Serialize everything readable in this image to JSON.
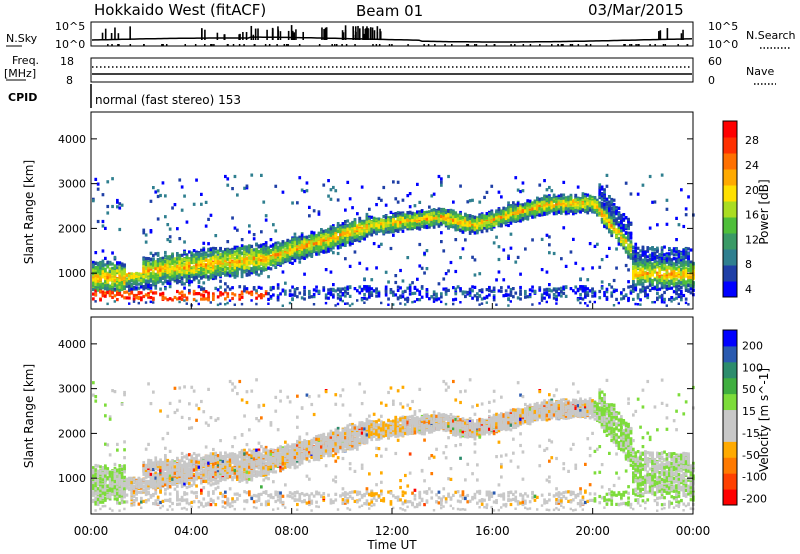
{
  "header": {
    "station": "Hokkaido West (fitACF)",
    "beam": "Beam 01",
    "date": "03/Mar/2015"
  },
  "status_panels": {
    "nsky_label": "N.Sky",
    "nsearch_label": "N.Search",
    "noise_ticks": [
      "10^5",
      "10^0"
    ],
    "freq_label": "Freq.",
    "freq_unit": "[MHz]",
    "freq_ticks": [
      "18",
      "8"
    ],
    "nave_label": "Nave",
    "nave_ticks": [
      "60",
      "0"
    ],
    "cpid_label": "CPID",
    "cpid_text": "normal (fast stereo) 153"
  },
  "colors": {
    "power": [
      "#0000ff",
      "#1f3fa6",
      "#2f7f8f",
      "#3a9a66",
      "#4fbf3a",
      "#aadd22",
      "#ffe000",
      "#ffaa00",
      "#ff7000",
      "#ff3000",
      "#ff0000"
    ],
    "velocity": [
      "#ff0000",
      "#ff4000",
      "#ff7a00",
      "#ffaa00",
      "#c8c8c8",
      "#c8c8c8",
      "#7ddc3a",
      "#3fae3f",
      "#2c8c6c",
      "#2a5ab0",
      "#0000ff"
    ]
  },
  "chart_data": [
    {
      "type": "heatmap",
      "name": "power",
      "xlabel": "",
      "ylabel": "Slant Range [km]",
      "ylim": [
        200,
        4600
      ],
      "yticks": [
        "1000",
        "2000",
        "3000",
        "4000"
      ],
      "colorbar_label": "Power [dB]",
      "colorbar_ticks": [
        "4",
        "8",
        "12",
        "16",
        "20",
        "24",
        "28"
      ]
    },
    {
      "type": "heatmap",
      "name": "velocity",
      "xlabel": "Time UT",
      "ylabel": "Slant Range [km]",
      "ylim": [
        200,
        4600
      ],
      "yticks": [
        "1000",
        "2000",
        "3000",
        "4000"
      ],
      "xticks": [
        "00:00",
        "04:00",
        "08:00",
        "12:00",
        "16:00",
        "20:00",
        "00:00"
      ],
      "colorbar_label": "Velocity [m s^-1]",
      "colorbar_ticks": [
        "200",
        "100",
        "50",
        "15",
        "-15",
        "-50",
        "-100",
        "-200"
      ]
    }
  ]
}
